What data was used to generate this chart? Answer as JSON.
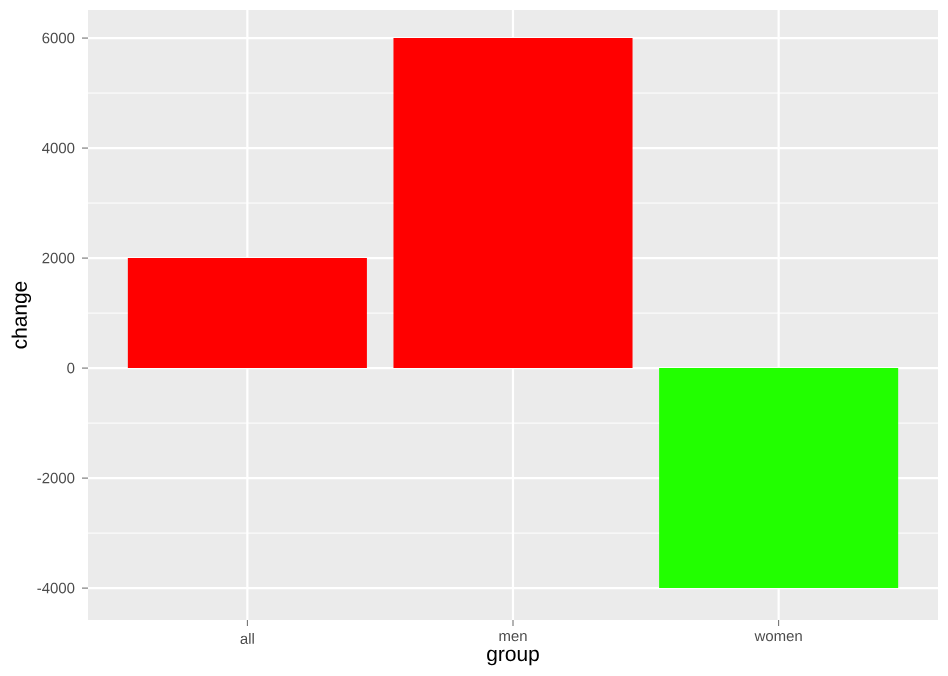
{
  "chart_data": {
    "type": "bar",
    "xlabel": "group",
    "ylabel": "change",
    "categories": [
      "all",
      "men",
      "women"
    ],
    "values": [
      2000,
      6000,
      -4000
    ],
    "colors": [
      "#ff0000",
      "#ff0000",
      "#22ff00"
    ],
    "ylim": [
      -4580,
      6510
    ],
    "yticks": [
      -4000,
      -2000,
      0,
      2000,
      4000,
      6000
    ],
    "grid": true
  }
}
